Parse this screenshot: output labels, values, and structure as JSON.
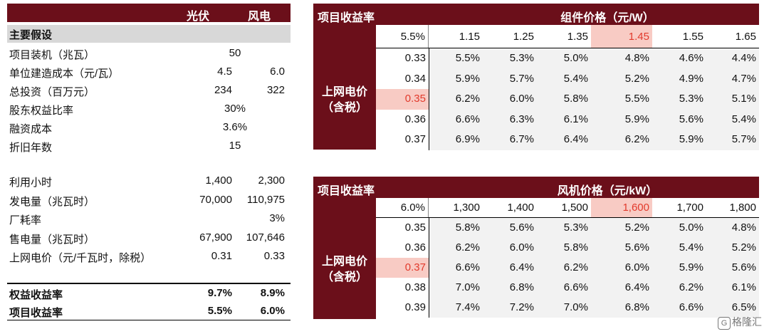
{
  "left": {
    "header": {
      "col1": "光伏",
      "col2": "风电"
    },
    "section": "主要假设",
    "rows_a": [
      {
        "label": "项目装机（兆瓦）",
        "v1": "",
        "v2": "",
        "vc": "50"
      },
      {
        "label": "单位建造成本（元/瓦）",
        "v1": "4.5",
        "v2": "6.0",
        "vc": ""
      },
      {
        "label": "总投资（百万元）",
        "v1": "234",
        "v2": "322",
        "vc": ""
      },
      {
        "label": "股东权益比率",
        "v1": "",
        "v2": "",
        "vc": "30%"
      },
      {
        "label": "融资成本",
        "v1": "",
        "v2": "",
        "vc": "3.6%"
      },
      {
        "label": "折旧年数",
        "v1": "",
        "v2": "",
        "vc": "15"
      }
    ],
    "rows_b": [
      {
        "label": "利用小时",
        "v1": "1,400",
        "v2": "2,300"
      },
      {
        "label": "发电量（兆瓦时）",
        "v1": "70,000",
        "v2": "110,975"
      },
      {
        "label": "厂耗率",
        "v1": "",
        "v2": "3%"
      },
      {
        "label": "售电量（兆瓦时）",
        "v1": "67,900",
        "v2": "107,646"
      },
      {
        "label": "上网电价（元/千瓦时，除税）",
        "v1": "0.31",
        "v2": "0.33"
      }
    ],
    "rows_c": [
      {
        "label": "权益收益率",
        "v1": "9.7%",
        "v2": "8.9%"
      },
      {
        "label": "项目收益率",
        "v1": "5.5%",
        "v2": "6.0%"
      }
    ]
  },
  "chart_data": [
    {
      "type": "table",
      "title": "项目收益率",
      "col_header": "组件价格（元/W）",
      "row_header": "上网电价（含税）",
      "corner": "5.5%",
      "columns": [
        "1.15",
        "1.25",
        "1.35",
        "1.45",
        "1.55",
        "1.65"
      ],
      "rows": [
        "0.33",
        "0.34",
        "0.35",
        "0.36",
        "0.37"
      ],
      "highlight_col": 3,
      "highlight_row": 2,
      "values": [
        [
          "5.5%",
          "5.3%",
          "5.0%",
          "4.8%",
          "4.6%",
          "4.4%"
        ],
        [
          "5.9%",
          "5.7%",
          "5.4%",
          "5.2%",
          "4.9%",
          "4.7%"
        ],
        [
          "6.2%",
          "6.0%",
          "5.8%",
          "5.5%",
          "5.3%",
          "5.1%"
        ],
        [
          "6.6%",
          "6.3%",
          "6.1%",
          "5.9%",
          "5.6%",
          "5.4%"
        ],
        [
          "6.9%",
          "6.7%",
          "6.4%",
          "6.2%",
          "5.9%",
          "5.7%"
        ]
      ]
    },
    {
      "type": "table",
      "title": "项目收益率",
      "col_header": "风机价格（元/kW）",
      "row_header": "上网电价（含税）",
      "corner": "6.0%",
      "columns": [
        "1,300",
        "1,400",
        "1,500",
        "1,600",
        "1,700",
        "1,800"
      ],
      "rows": [
        "0.35",
        "0.36",
        "0.37",
        "0.38",
        "0.39"
      ],
      "highlight_col": 3,
      "highlight_row": 2,
      "values": [
        [
          "5.8%",
          "5.6%",
          "5.3%",
          "5.2%",
          "5.0%",
          "4.8%"
        ],
        [
          "6.2%",
          "6.0%",
          "5.8%",
          "5.6%",
          "5.4%",
          "5.2%"
        ],
        [
          "6.6%",
          "6.4%",
          "6.2%",
          "6.0%",
          "5.9%",
          "5.6%"
        ],
        [
          "7.0%",
          "6.8%",
          "6.6%",
          "6.4%",
          "6.2%",
          "6.1%"
        ],
        [
          "7.4%",
          "7.2%",
          "7.0%",
          "6.8%",
          "6.6%",
          "6.5%"
        ]
      ]
    }
  ],
  "watermark": {
    "logo": "G",
    "text": "格隆汇"
  },
  "colors": {
    "header": "#6b0f1a",
    "highlight_bg": "#f8cbc4",
    "highlight_text": "#e23a2c",
    "cell_bg": "#f2f2f2",
    "section_bg": "#d8d8d8"
  }
}
